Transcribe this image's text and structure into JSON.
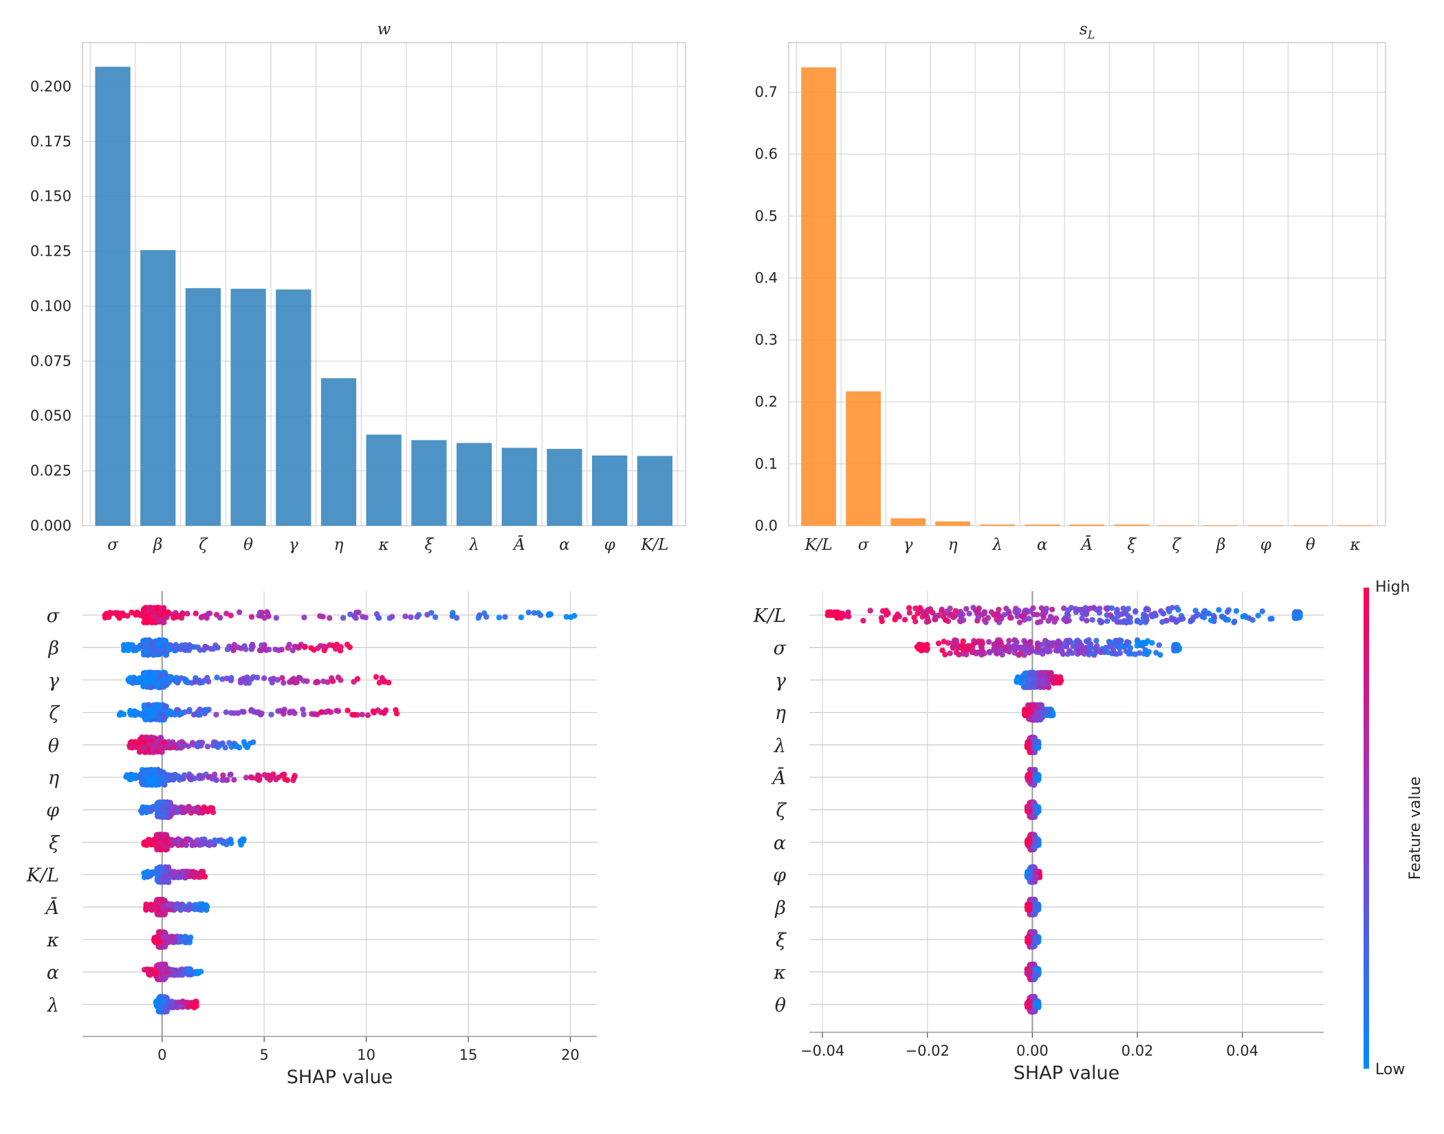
{
  "figure": {
    "colorbar_label": "Feature value",
    "colorbar_high": "High",
    "colorbar_low": "Low"
  },
  "chart_data": [
    {
      "type": "bar",
      "title": "w",
      "color": "#3a87bf",
      "categories": [
        "σ",
        "β",
        "ζ",
        "θ",
        "γ",
        "η",
        "κ",
        "ξ",
        "λ",
        "Ā",
        "α",
        "φ",
        "K/L"
      ],
      "values": [
        0.209,
        0.1255,
        0.1082,
        0.1079,
        0.1076,
        0.0672,
        0.0415,
        0.039,
        0.0377,
        0.0355,
        0.035,
        0.032,
        0.0318
      ],
      "ylim": [
        0,
        0.22
      ],
      "yticks": [
        0.0,
        0.025,
        0.05,
        0.075,
        0.1,
        0.125,
        0.15,
        0.175,
        0.2
      ],
      "ytick_labels": [
        "0.000",
        "0.025",
        "0.050",
        "0.075",
        "0.100",
        "0.125",
        "0.150",
        "0.175",
        "0.200"
      ]
    },
    {
      "type": "bar",
      "title": "s_L",
      "color": "#ff9132",
      "categories": [
        "K/L",
        "σ",
        "γ",
        "η",
        "λ",
        "α",
        "Ā",
        "ξ",
        "ζ",
        "β",
        "φ",
        "θ",
        "κ"
      ],
      "values": [
        0.74,
        0.217,
        0.012,
        0.007,
        0.002,
        0.002,
        0.002,
        0.002,
        0.001,
        0.001,
        0.001,
        0.001,
        0.001
      ],
      "ylim": [
        0,
        0.78
      ],
      "yticks": [
        0.0,
        0.1,
        0.2,
        0.3,
        0.4,
        0.5,
        0.6,
        0.7
      ],
      "ytick_labels": [
        "0.0",
        "0.1",
        "0.2",
        "0.3",
        "0.4",
        "0.5",
        "0.6",
        "0.7"
      ]
    },
    {
      "type": "scatter",
      "subtype": "shap-beeswarm",
      "title": "",
      "xlabel": "SHAP value",
      "xlim": [
        -3.9,
        21.3
      ],
      "xticks": [
        0,
        5,
        10,
        15,
        20
      ],
      "xtick_labels": [
        "0",
        "5",
        "10",
        "15",
        "20"
      ],
      "features": [
        "σ",
        "β",
        "γ",
        "ζ",
        "θ",
        "η",
        "φ",
        "ξ",
        "K/L",
        "Ā",
        "κ",
        "α",
        "λ"
      ],
      "spread": [
        {
          "min": -2.8,
          "max": 20.2,
          "core": [
            -1.0,
            0.15
          ],
          "high_side": "low",
          "outliers": [
            9.5,
            15.5,
            20.2
          ]
        },
        {
          "min": -1.9,
          "max": 9.2,
          "core": [
            -1.0,
            0.3
          ],
          "high_side": "high",
          "outliers": [
            7.3,
            9.2
          ]
        },
        {
          "min": -1.7,
          "max": 11.1,
          "core": [
            -1.0,
            0.3
          ],
          "high_side": "high",
          "outliers": [
            6.7,
            11.1
          ]
        },
        {
          "min": -2.1,
          "max": 11.5,
          "core": [
            -1.0,
            0.3
          ],
          "high_side": "high",
          "outliers": [
            7.6,
            11.5
          ]
        },
        {
          "min": -1.6,
          "max": 4.5,
          "core": [
            -1.2,
            0.1
          ],
          "high_side": "low",
          "outliers": []
        },
        {
          "min": -1.8,
          "max": 6.5,
          "core": [
            -1.1,
            0.2
          ],
          "high_side": "high",
          "outliers": [
            6.5
          ]
        },
        {
          "min": -1.1,
          "max": 2.5,
          "core": [
            -0.3,
            0.5
          ],
          "high_side": "high",
          "outliers": [
            2.5
          ]
        },
        {
          "min": -0.9,
          "max": 4.0,
          "core": [
            -0.3,
            0.3
          ],
          "high_side": "low",
          "outliers": [
            4.0
          ]
        },
        {
          "min": -0.9,
          "max": 2.1,
          "core": [
            -0.3,
            0.4
          ],
          "high_side": "high",
          "outliers": [
            2.1
          ]
        },
        {
          "min": -0.8,
          "max": 2.2,
          "core": [
            -0.3,
            0.2
          ],
          "high_side": "low",
          "outliers": [
            2.2
          ]
        },
        {
          "min": -0.4,
          "max": 1.4,
          "core": [
            -0.2,
            0.2
          ],
          "high_side": "low",
          "outliers": []
        },
        {
          "min": -0.9,
          "max": 1.9,
          "core": [
            -0.3,
            0.2
          ],
          "high_side": "low",
          "outliers": [
            1.9
          ]
        },
        {
          "min": -0.3,
          "max": 1.7,
          "core": [
            -0.2,
            0.3
          ],
          "high_side": "high",
          "outliers": []
        }
      ]
    },
    {
      "type": "scatter",
      "subtype": "shap-beeswarm",
      "title": "",
      "xlabel": "SHAP value",
      "xlim": [
        -0.0425,
        0.0555
      ],
      "xticks": [
        -0.04,
        -0.02,
        0.0,
        0.02,
        0.04
      ],
      "xtick_labels": [
        "−0.04",
        "−0.02",
        "0.00",
        "0.02",
        "0.04"
      ],
      "features": [
        "K/L",
        "σ",
        "γ",
        "η",
        "λ",
        "Ā",
        "ζ",
        "α",
        "φ",
        "β",
        "ξ",
        "κ",
        "θ"
      ],
      "spread": [
        {
          "min": -0.039,
          "max": 0.051,
          "core": [
            -0.035,
            0.05
          ],
          "high_side": "low",
          "outliers": []
        },
        {
          "min": -0.022,
          "max": 0.028,
          "core": [
            -0.02,
            0.027
          ],
          "high_side": "low",
          "outliers": []
        },
        {
          "min": -0.003,
          "max": 0.0055,
          "core": [
            -0.002,
            0.004
          ],
          "high_side": "high",
          "outliers": []
        },
        {
          "min": -0.0015,
          "max": 0.004,
          "core": [
            -0.001,
            0.002
          ],
          "high_side": "low",
          "outliers": []
        },
        {
          "min": -0.001,
          "max": 0.0012,
          "core": [
            -0.0006,
            0.0006
          ],
          "high_side": "low",
          "outliers": []
        },
        {
          "min": -0.001,
          "max": 0.0012,
          "core": [
            -0.0006,
            0.0006
          ],
          "high_side": "low",
          "outliers": []
        },
        {
          "min": -0.001,
          "max": 0.0012,
          "core": [
            -0.0006,
            0.0006
          ],
          "high_side": "low",
          "outliers": []
        },
        {
          "min": -0.001,
          "max": 0.0012,
          "core": [
            -0.0006,
            0.0006
          ],
          "high_side": "low",
          "outliers": []
        },
        {
          "min": -0.001,
          "max": 0.0014,
          "core": [
            -0.0006,
            0.0006
          ],
          "high_side": "high",
          "outliers": []
        },
        {
          "min": -0.001,
          "max": 0.0012,
          "core": [
            -0.0006,
            0.0006
          ],
          "high_side": "low",
          "outliers": []
        },
        {
          "min": -0.001,
          "max": 0.0012,
          "core": [
            -0.0006,
            0.0006
          ],
          "high_side": "low",
          "outliers": []
        },
        {
          "min": -0.001,
          "max": 0.0012,
          "core": [
            -0.0006,
            0.0006
          ],
          "high_side": "low",
          "outliers": []
        },
        {
          "min": -0.001,
          "max": 0.0012,
          "core": [
            -0.0006,
            0.0006
          ],
          "high_side": "low",
          "outliers": []
        }
      ]
    }
  ]
}
